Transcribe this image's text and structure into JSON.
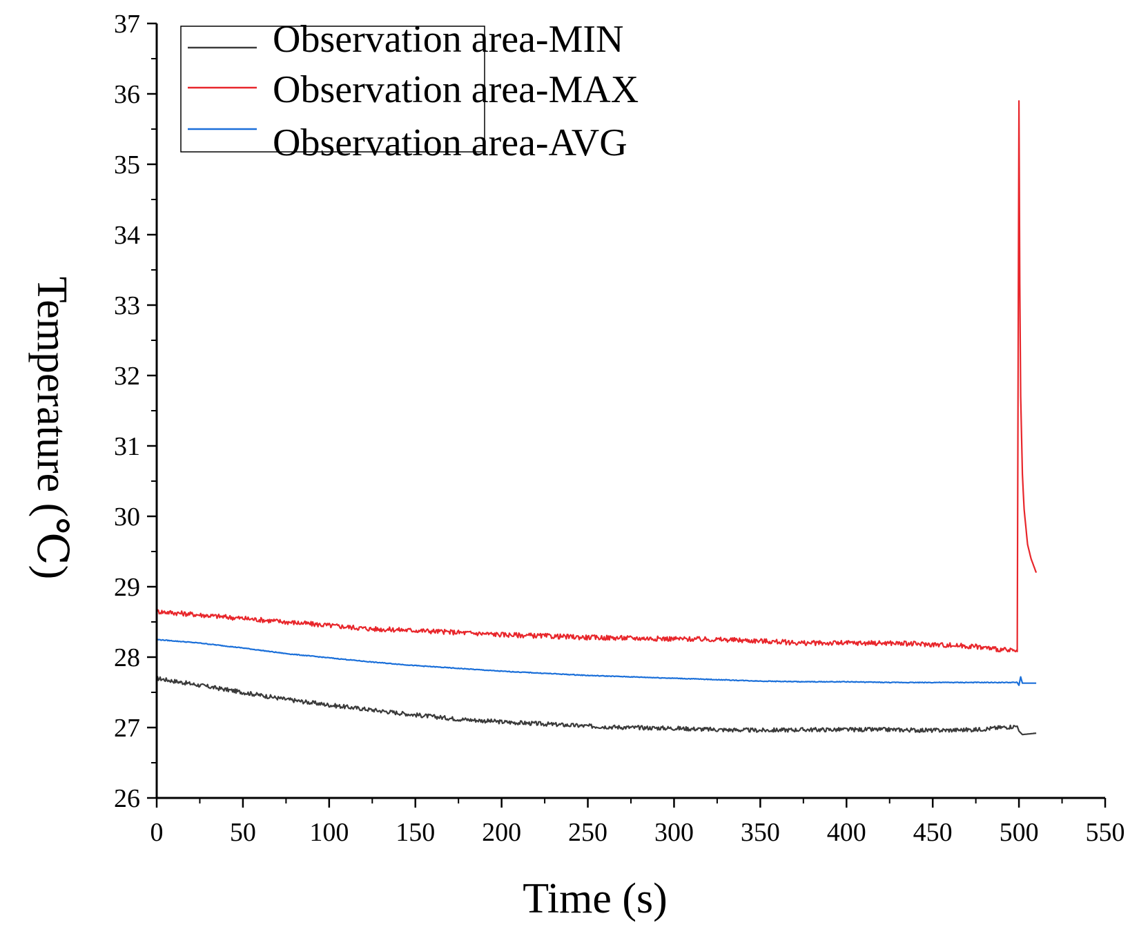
{
  "chart_data": {
    "type": "line",
    "title": "",
    "xlabel": "Time (s)",
    "ylabel": "Temperature (℃)",
    "xlim": [
      0,
      550
    ],
    "ylim": [
      26,
      37
    ],
    "xticks": [
      0,
      50,
      100,
      150,
      200,
      250,
      300,
      350,
      400,
      450,
      500,
      550
    ],
    "yticks": [
      26,
      27,
      28,
      29,
      30,
      31,
      32,
      33,
      34,
      35,
      36,
      37
    ],
    "grid": false,
    "legend_position": "top-left",
    "series": [
      {
        "name": "Observation area-MIN",
        "color": "#3a3a3a",
        "x": [
          0,
          25,
          50,
          75,
          100,
          125,
          150,
          175,
          200,
          225,
          250,
          275,
          300,
          325,
          350,
          375,
          400,
          425,
          450,
          475,
          499,
          500,
          502,
          510
        ],
        "y": [
          27.7,
          27.6,
          27.5,
          27.4,
          27.32,
          27.25,
          27.18,
          27.12,
          27.08,
          27.05,
          27.02,
          27.0,
          26.99,
          26.97,
          26.96,
          26.97,
          26.97,
          26.97,
          26.96,
          26.97,
          27.02,
          26.95,
          26.9,
          26.92
        ]
      },
      {
        "name": "Observation area-MAX",
        "color": "#e8262b",
        "x": [
          0,
          25,
          50,
          75,
          100,
          125,
          150,
          175,
          200,
          225,
          250,
          275,
          300,
          325,
          350,
          375,
          400,
          425,
          450,
          475,
          499,
          500,
          500.5,
          501,
          502,
          503,
          505,
          507,
          510
        ],
        "y": [
          28.65,
          28.6,
          28.55,
          28.5,
          28.45,
          28.4,
          28.38,
          28.35,
          28.32,
          28.3,
          28.28,
          28.27,
          28.26,
          28.25,
          28.23,
          28.2,
          28.2,
          28.2,
          28.18,
          28.15,
          28.08,
          35.9,
          33.3,
          31.7,
          30.6,
          30.1,
          29.6,
          29.4,
          29.2
        ]
      },
      {
        "name": "Observation area-AVG",
        "color": "#1a6fd9",
        "x": [
          0,
          25,
          50,
          75,
          100,
          125,
          150,
          175,
          200,
          225,
          250,
          275,
          300,
          325,
          350,
          375,
          400,
          425,
          450,
          475,
          499,
          500,
          501,
          502,
          510
        ],
        "y": [
          28.25,
          28.2,
          28.13,
          28.05,
          27.99,
          27.93,
          27.88,
          27.84,
          27.8,
          27.77,
          27.74,
          27.72,
          27.7,
          27.68,
          27.66,
          27.65,
          27.65,
          27.64,
          27.64,
          27.64,
          27.64,
          27.6,
          27.72,
          27.63,
          27.63
        ]
      }
    ]
  }
}
